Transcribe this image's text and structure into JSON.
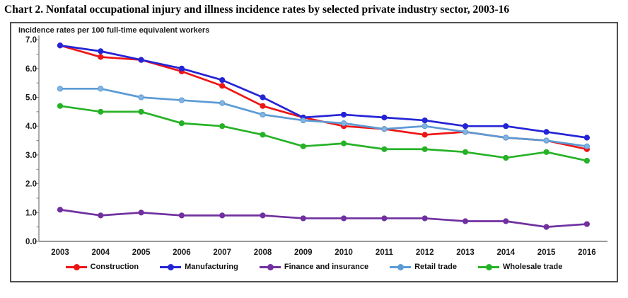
{
  "page": {
    "title": "Chart 2. Nonfatal occupational injury and illness incidence rates by selected private industry sector, 2003-16"
  },
  "chart_data": {
    "type": "line",
    "title": "Chart 2. Nonfatal occupational injury and illness incidence rates by selected private industry sector, 2003-16",
    "axis_note": "Incidence rates per 100 full-time equivalent workers",
    "x_categories": [
      "2003",
      "2004",
      "2005",
      "2006",
      "2007",
      "2008",
      "2009",
      "2010",
      "2011",
      "2012",
      "2013",
      "2014",
      "2015",
      "2016"
    ],
    "ylim": [
      0.0,
      7.0
    ],
    "ytick_step": 1.0,
    "ytick_labels": [
      "0.0",
      "1.0",
      "2.0",
      "3.0",
      "4.0",
      "5.0",
      "6.0",
      "7.0"
    ],
    "grid": false,
    "legend_position": "bottom",
    "marker": "circle",
    "series": [
      {
        "name": "Construction",
        "color": "#ED1515",
        "dot_fill": "#ED1515",
        "values": [
          6.8,
          6.4,
          6.3,
          5.9,
          5.4,
          4.7,
          4.3,
          4.0,
          3.9,
          3.7,
          3.8,
          3.6,
          3.5,
          3.2
        ]
      },
      {
        "name": "Manufacturing",
        "color": "#2424D6",
        "dot_fill": "#2424D6",
        "values": [
          6.8,
          6.6,
          6.3,
          6.0,
          5.6,
          5.0,
          4.3,
          4.4,
          4.3,
          4.2,
          4.0,
          4.0,
          3.8,
          3.6
        ]
      },
      {
        "name": "Finance and insurance",
        "color": "#7030A0",
        "dot_fill": "#7030A0",
        "values": [
          1.1,
          0.9,
          1.0,
          0.9,
          0.9,
          0.9,
          0.8,
          0.8,
          0.8,
          0.8,
          0.7,
          0.7,
          0.5,
          0.6
        ]
      },
      {
        "name": "Retail trade",
        "color": "#5B9BD5",
        "dot_fill": "#82B4E2",
        "values": [
          5.3,
          5.3,
          5.0,
          4.9,
          4.8,
          4.4,
          4.2,
          4.1,
          3.9,
          4.0,
          3.8,
          3.6,
          3.5,
          3.3
        ]
      },
      {
        "name": "Wholesale trade",
        "color": "#26B226",
        "dot_fill": "#26B226",
        "values": [
          4.7,
          4.5,
          4.5,
          4.1,
          4.0,
          3.7,
          3.3,
          3.4,
          3.2,
          3.2,
          3.1,
          2.9,
          3.1,
          2.8
        ]
      }
    ],
    "axis_colors": {
      "y_axis": "#808080",
      "x_axis": "#999999",
      "tick": "#808080",
      "label": "#1a1a1a"
    }
  }
}
